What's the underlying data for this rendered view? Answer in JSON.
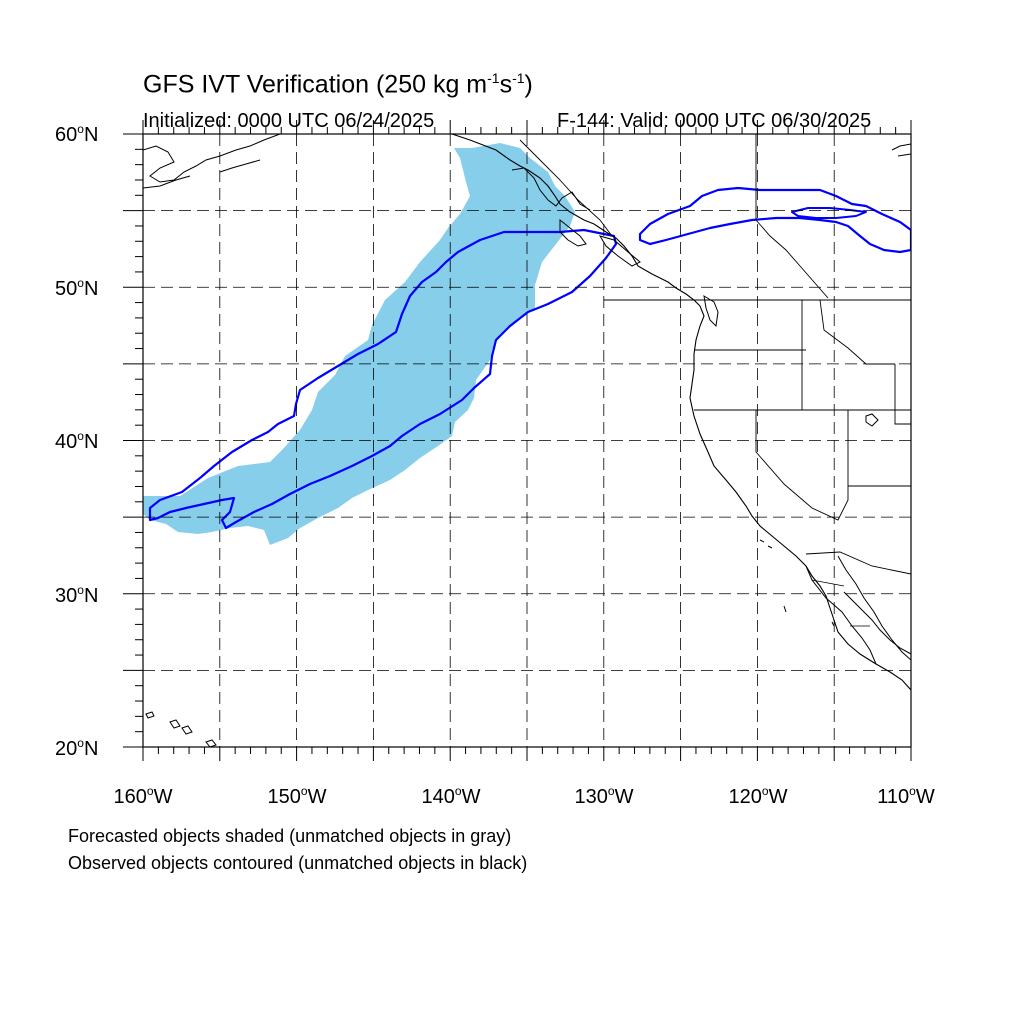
{
  "title": {
    "main": "GFS IVT Verification (250 kg m",
    "exp1": "-1",
    "mid": "s",
    "exp2": "-1",
    "tail": ")"
  },
  "init_label": "Initialized: 0000 UTC 06/24/2025",
  "valid_label": "F-144: Valid: 0000 UTC 06/30/2025",
  "lat_labels": [
    {
      "deg": "60",
      "hemi": "N"
    },
    {
      "deg": "50",
      "hemi": "N"
    },
    {
      "deg": "40",
      "hemi": "N"
    },
    {
      "deg": "30",
      "hemi": "N"
    },
    {
      "deg": "20",
      "hemi": "N"
    }
  ],
  "lon_labels": [
    {
      "deg": "160",
      "hemi": "W"
    },
    {
      "deg": "150",
      "hemi": "W"
    },
    {
      "deg": "140",
      "hemi": "W"
    },
    {
      "deg": "130",
      "hemi": "W"
    },
    {
      "deg": "120",
      "hemi": "W"
    },
    {
      "deg": "110",
      "hemi": "W"
    }
  ],
  "footnotes": [
    "Forecasted objects shaded (unmatched objects in gray)",
    "Observed objects contoured (unmatched objects in black)"
  ],
  "colors": {
    "forecast_fill": "#87ceeb",
    "observed_contour": "#0000ff",
    "coastline": "#000000",
    "grid": "#000000"
  },
  "map_extent": {
    "lon_min": -160,
    "lon_max": -110,
    "lat_min": 20,
    "lat_max": 60
  }
}
